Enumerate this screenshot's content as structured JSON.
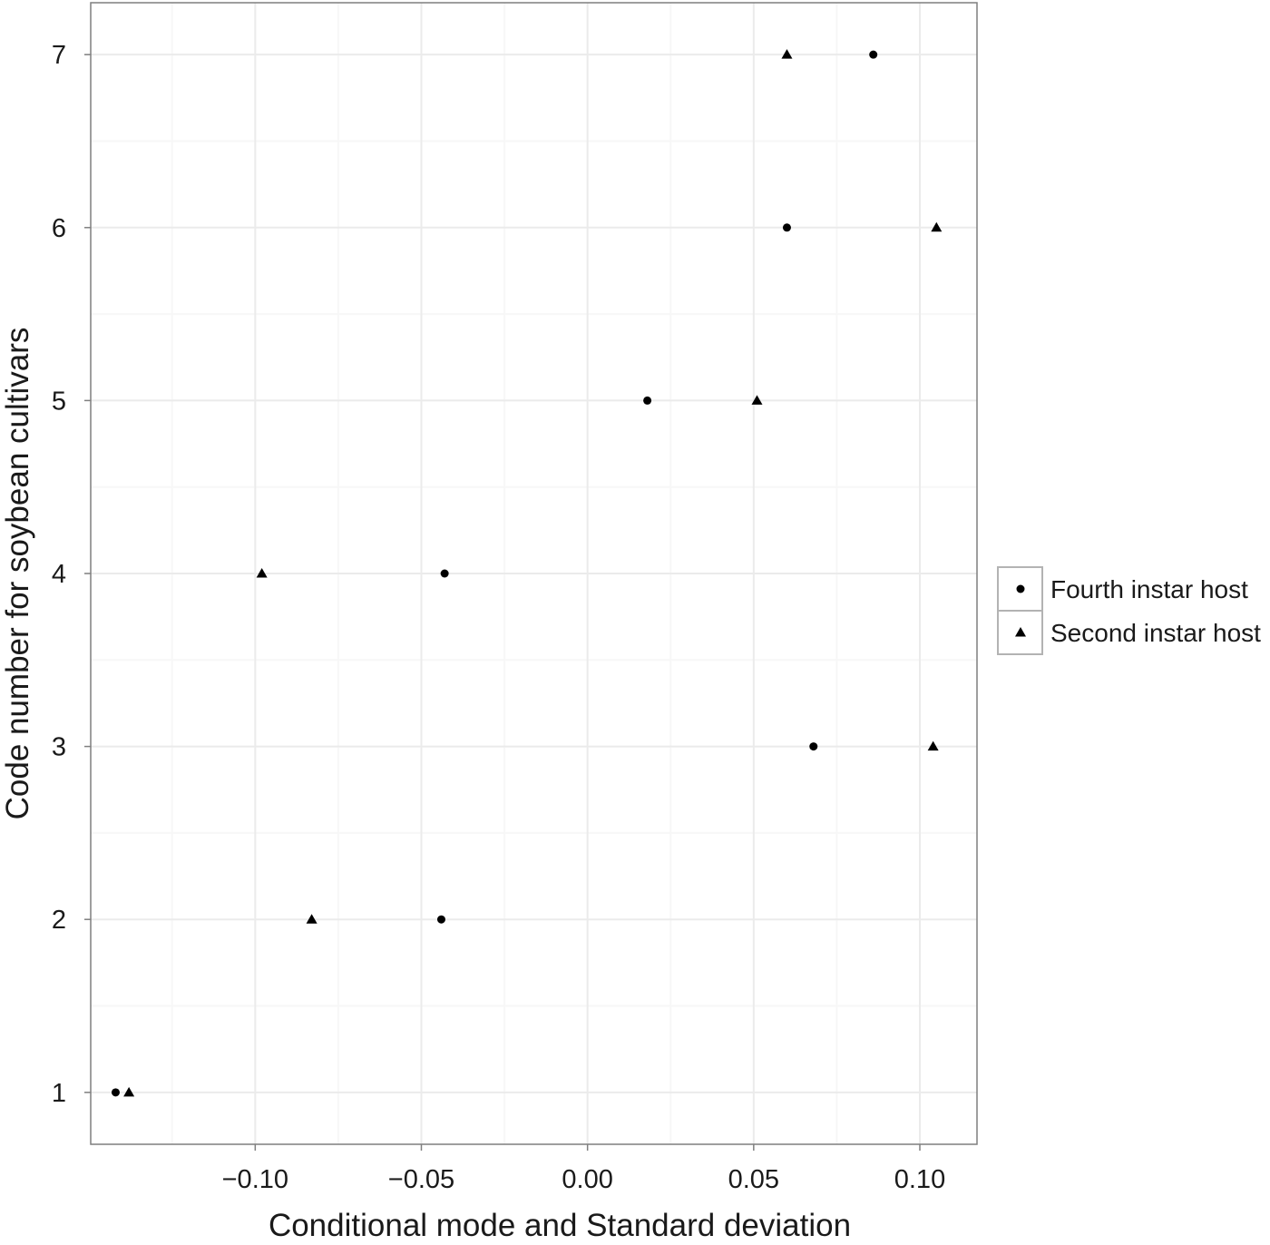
{
  "chart_data": {
    "type": "scatter",
    "title": "",
    "xlabel": "Conditional mode and Standard deviation",
    "ylabel": "Code number for soybean cultivars",
    "xlim": [
      -0.1495,
      0.1172
    ],
    "ylim": [
      0.7,
      7.3
    ],
    "x_ticks": [
      {
        "value": -0.1,
        "label": "−0.10"
      },
      {
        "value": -0.05,
        "label": "−0.05"
      },
      {
        "value": 0.0,
        "label": "0.00"
      },
      {
        "value": 0.05,
        "label": "0.05"
      },
      {
        "value": 0.1,
        "label": "0.10"
      }
    ],
    "y_ticks": [
      {
        "value": 1,
        "label": "1"
      },
      {
        "value": 2,
        "label": "2"
      },
      {
        "value": 3,
        "label": "3"
      },
      {
        "value": 4,
        "label": "4"
      },
      {
        "value": 5,
        "label": "5"
      },
      {
        "value": 6,
        "label": "6"
      },
      {
        "value": 7,
        "label": "7"
      }
    ],
    "x_minor_ticks": [
      -0.125,
      -0.075,
      -0.025,
      0.025,
      0.075
    ],
    "y_minor_ticks": [
      1.5,
      2.5,
      3.5,
      4.5,
      5.5,
      6.5
    ],
    "grid": true,
    "legend_position": "right",
    "series": [
      {
        "name": "Fourth instar host",
        "marker": "circle",
        "color": "#000000",
        "points": [
          {
            "x": -0.142,
            "y": 1
          },
          {
            "x": -0.044,
            "y": 2
          },
          {
            "x": 0.068,
            "y": 3
          },
          {
            "x": -0.043,
            "y": 4
          },
          {
            "x": 0.018,
            "y": 5
          },
          {
            "x": 0.06,
            "y": 6
          },
          {
            "x": 0.086,
            "y": 7
          }
        ]
      },
      {
        "name": "Second instar host",
        "marker": "triangle",
        "color": "#000000",
        "points": [
          {
            "x": -0.138,
            "y": 1
          },
          {
            "x": -0.083,
            "y": 2
          },
          {
            "x": 0.104,
            "y": 3
          },
          {
            "x": -0.098,
            "y": 4
          },
          {
            "x": 0.051,
            "y": 5
          },
          {
            "x": 0.105,
            "y": 6
          },
          {
            "x": 0.06,
            "y": 7
          }
        ]
      }
    ]
  },
  "colors": {
    "panel_border": "#7f7f7f",
    "major_grid": "#ebebeb",
    "minor_grid": "#f7f7f7",
    "tick": "#7f7f7f",
    "legend_border": "#b3b3b3",
    "text": "#1a1a1a",
    "marker": "#000000"
  }
}
